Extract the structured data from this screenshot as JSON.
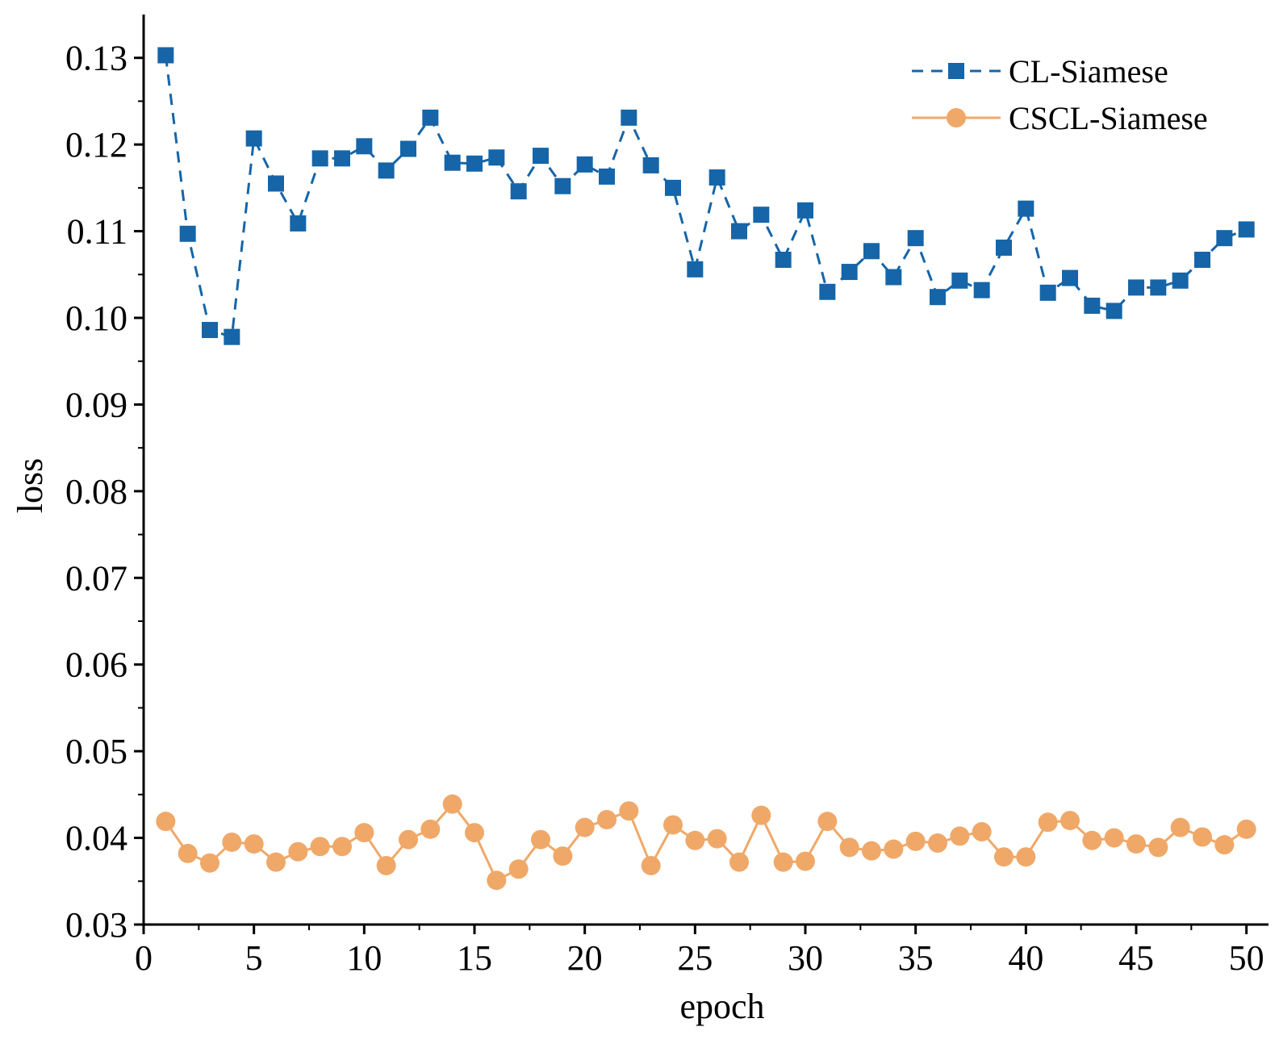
{
  "chart_data": {
    "type": "line",
    "title": "",
    "xlabel": "epoch",
    "ylabel": "loss",
    "xlim": [
      0,
      51
    ],
    "ylim": [
      0.03,
      0.135
    ],
    "xticks": [
      0,
      5,
      10,
      15,
      20,
      25,
      30,
      35,
      40,
      45,
      50
    ],
    "xtick_labels": [
      "0",
      "5",
      "10",
      "15",
      "20",
      "25",
      "30",
      "35",
      "40",
      "45",
      "50"
    ],
    "yticks": [
      0.03,
      0.04,
      0.05,
      0.06,
      0.07,
      0.08,
      0.09,
      0.1,
      0.11,
      0.12,
      0.13
    ],
    "ytick_labels": [
      "0.03",
      "0.04",
      "0.05",
      "0.06",
      "0.07",
      "0.08",
      "0.09",
      "0.10",
      "0.11",
      "0.12",
      "0.13"
    ],
    "grid": false,
    "legend_position": "top-right",
    "x": [
      1,
      2,
      3,
      4,
      5,
      6,
      7,
      8,
      9,
      10,
      11,
      12,
      13,
      14,
      15,
      16,
      17,
      18,
      19,
      20,
      21,
      22,
      23,
      24,
      25,
      26,
      27,
      28,
      29,
      30,
      31,
      32,
      33,
      34,
      35,
      36,
      37,
      38,
      39,
      40,
      41,
      42,
      43,
      44,
      45,
      46,
      47,
      48,
      49,
      50
    ],
    "series": [
      {
        "name": "CL-Siamese",
        "color": "#1565a8",
        "line_style": "dashed",
        "marker": "square",
        "values": [
          0.1303,
          0.1097,
          0.0986,
          0.0978,
          0.1207,
          0.1155,
          0.1109,
          0.1184,
          0.1184,
          0.1198,
          0.117,
          0.1195,
          0.1231,
          0.1179,
          0.1178,
          0.1185,
          0.1146,
          0.1187,
          0.1152,
          0.1177,
          0.1163,
          0.1231,
          0.1176,
          0.115,
          0.1056,
          0.1162,
          0.11,
          0.1119,
          0.1067,
          0.1124,
          0.103,
          0.1053,
          0.1077,
          0.1047,
          0.1092,
          0.1024,
          0.1043,
          0.1032,
          0.1081,
          0.1126,
          0.1029,
          0.1046,
          0.1014,
          0.1008,
          0.1035,
          0.1035,
          0.1043,
          0.1067,
          0.1092,
          0.1102
        ]
      },
      {
        "name": "CSCL-Siamese",
        "color": "#f0a868",
        "line_style": "solid",
        "marker": "circle",
        "values": [
          0.0419,
          0.0382,
          0.0371,
          0.0395,
          0.0393,
          0.0372,
          0.0384,
          0.039,
          0.039,
          0.0406,
          0.0368,
          0.0398,
          0.041,
          0.0439,
          0.0406,
          0.0351,
          0.0364,
          0.0398,
          0.0379,
          0.0412,
          0.0421,
          0.0431,
          0.0368,
          0.0415,
          0.0397,
          0.0399,
          0.0372,
          0.0426,
          0.0372,
          0.0373,
          0.0419,
          0.0389,
          0.0385,
          0.0387,
          0.0396,
          0.0394,
          0.0402,
          0.0407,
          0.0378,
          0.0378,
          0.0418,
          0.042,
          0.0397,
          0.04,
          0.0393,
          0.0389,
          0.0412,
          0.0401,
          0.0392,
          0.041
        ]
      }
    ]
  }
}
